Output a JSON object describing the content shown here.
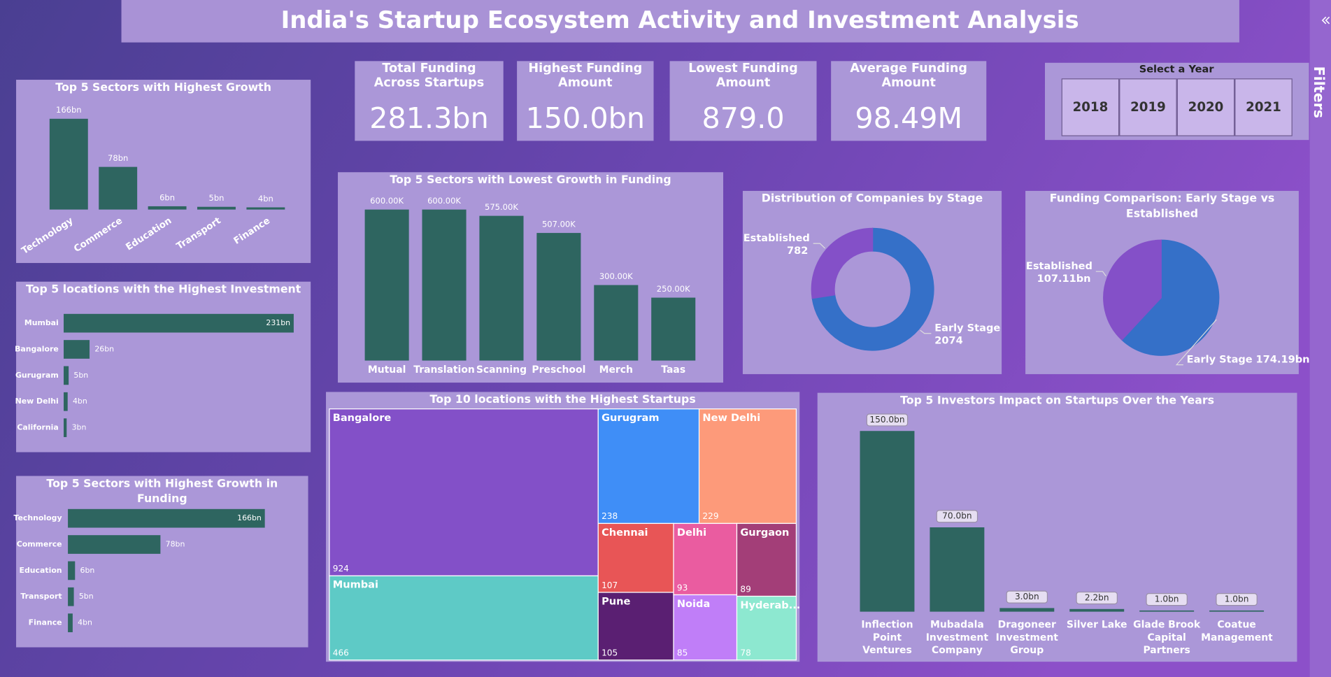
{
  "title": "India's Startup Ecosystem Activity and Investment Analysis",
  "kpis": [
    {
      "label": "Total Funding Across Startups",
      "value": "281.3bn"
    },
    {
      "label": "Highest Funding Amount",
      "value": "150.0bn"
    },
    {
      "label": "Lowest Funding Amount",
      "value": "879.0"
    },
    {
      "label": "Average Funding Amount",
      "value": "98.49M"
    }
  ],
  "slicer": {
    "title": "Select a Year",
    "options": [
      "2018",
      "2019",
      "2020",
      "2021"
    ]
  },
  "filters_pane": {
    "label": "Filters"
  },
  "chart_data": [
    {
      "type": "bar",
      "title": "Top 5 Sectors with Highest Growth",
      "color": "#2e6560",
      "categories": [
        "Technology",
        "Commerce",
        "Education",
        "Transport",
        "Finance"
      ],
      "values": [
        166,
        78,
        6,
        5,
        4
      ],
      "value_labels": [
        "166bn",
        "78bn",
        "6bn",
        "5bn",
        "4bn"
      ]
    },
    {
      "type": "bar",
      "orientation": "horizontal",
      "title": "Top 5 locations with the Highest Investment",
      "color": "#2e6560",
      "categories": [
        "Mumbai",
        "Bangalore",
        "Gurugram",
        "New Delhi",
        "California"
      ],
      "values": [
        231,
        26,
        5,
        4,
        3
      ],
      "value_labels": [
        "231bn",
        "26bn",
        "5bn",
        "4bn",
        "3bn"
      ]
    },
    {
      "type": "bar",
      "orientation": "horizontal",
      "title": "Top 5 Sectors with Highest Growth in Funding",
      "color": "#2e6560",
      "categories": [
        "Technology",
        "Commerce",
        "Education",
        "Transport",
        "Finance"
      ],
      "values": [
        166,
        78,
        6,
        5,
        4
      ],
      "value_labels": [
        "166bn",
        "78bn",
        "6bn",
        "5bn",
        "4bn"
      ]
    },
    {
      "type": "bar",
      "title": "Top 5 Sectors with Lowest Growth in Funding",
      "color": "#2e6560",
      "categories": [
        "Mutual",
        "Translation",
        "Scanning",
        "Preschool",
        "Merch",
        "Taas"
      ],
      "values": [
        600000,
        600000,
        575000,
        507000,
        300000,
        250000
      ],
      "value_labels": [
        "600.00K",
        "600.00K",
        "575.00K",
        "507.00K",
        "300.00K",
        "250.00K"
      ]
    },
    {
      "type": "pie",
      "donut": true,
      "title": "Distribution of Companies by Stage",
      "categories": [
        "Early Stage",
        "Established"
      ],
      "values": [
        2074,
        782
      ],
      "colors": [
        "#3570c8",
        "#8450c8"
      ]
    },
    {
      "type": "pie",
      "title": "Funding Comparison: Early Stage vs Established",
      "categories": [
        "Early Stage",
        "Established"
      ],
      "values": [
        174.19,
        107.11
      ],
      "value_labels": [
        "174.19bn",
        "107.11bn"
      ],
      "colors": [
        "#3570c8",
        "#8450c8"
      ]
    },
    {
      "type": "treemap",
      "title": "Top 10 locations with the Highest Startups",
      "categories": [
        "Bangalore",
        "Mumbai",
        "Gurugram",
        "New Delhi",
        "Chennai",
        "Delhi",
        "Gurgaon",
        "Pune",
        "Noida",
        "Hyderab..."
      ],
      "values": [
        924,
        466,
        238,
        229,
        107,
        93,
        89,
        105,
        85,
        78
      ],
      "colors": [
        "#8350c8",
        "#5ecac6",
        "#3f8ef7",
        "#fd9a7a",
        "#e85556",
        "#ea5ca0",
        "#a33e78",
        "#5a1f72",
        "#c07ef8",
        "#8de8d0"
      ]
    },
    {
      "type": "bar",
      "title": "Top 5 Investors Impact on Startups Over the Years",
      "color": "#2e6560",
      "categories": [
        "Inflection Point Ventures",
        "Mubadala Investment Company",
        "Dragoneer Investment Group",
        "Silver Lake",
        "Glade Brook Capital Partners",
        "Coatue Management"
      ],
      "values": [
        150,
        70,
        3,
        2.2,
        1,
        1
      ],
      "value_labels": [
        "150.0bn",
        "70.0bn",
        "3.0bn",
        "2.2bn",
        "1.0bn",
        "1.0bn"
      ]
    }
  ]
}
